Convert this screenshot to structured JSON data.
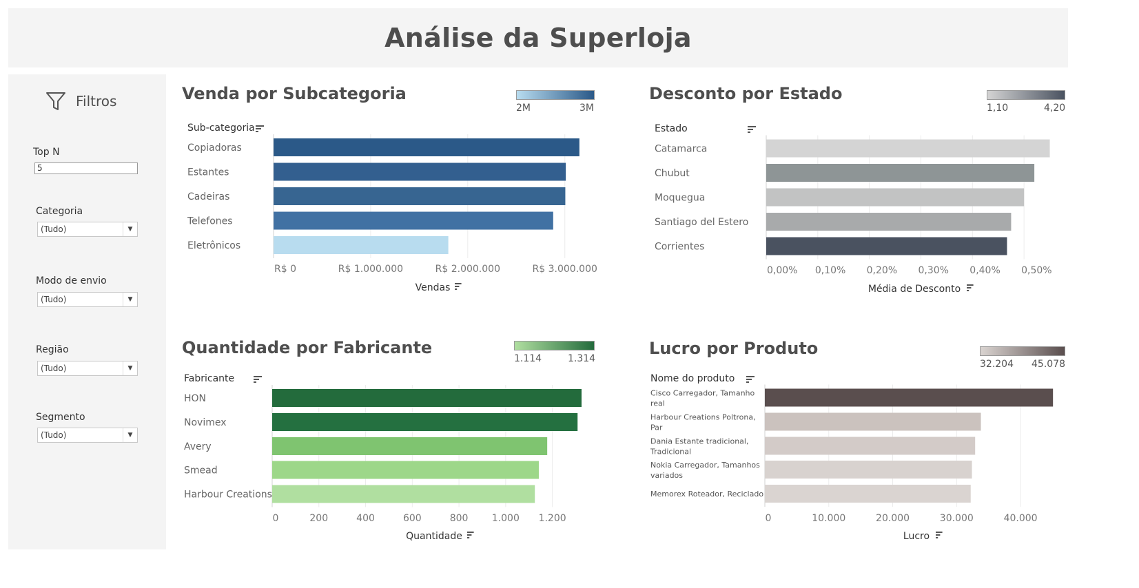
{
  "header": {
    "title": "Análise da Superloja"
  },
  "sidebar": {
    "filters_label": "Filtros",
    "topn": {
      "label": "Top N",
      "value": "5"
    },
    "filters": [
      {
        "label": "Categoria",
        "value": "(Tudo)"
      },
      {
        "label": "Modo de envio",
        "value": "(Tudo)"
      },
      {
        "label": "Região",
        "value": "(Tudo)"
      },
      {
        "label": "Segmento",
        "value": "(Tudo)"
      }
    ]
  },
  "chart_data": [
    {
      "type": "bar",
      "title": "Venda por Subcategoria",
      "category_header": "Sub-categoria",
      "xlabel": "Vendas",
      "categories": [
        "Copiadoras",
        "Estantes",
        "Cadeiras",
        "Telefones",
        "Eletrônicos"
      ],
      "values": [
        3150000,
        3010000,
        3005000,
        2880000,
        1800000
      ],
      "colors": [
        "#2b5988",
        "#335f8f",
        "#376591",
        "#4171a3",
        "#b8dcef"
      ],
      "xlim": [
        0,
        3300000
      ],
      "xticks": [
        {
          "value": 0,
          "label": "R$ 0"
        },
        {
          "value": 1000000,
          "label": "R$ 1.000.000"
        },
        {
          "value": 2000000,
          "label": "R$ 2.000.000"
        },
        {
          "value": 3000000,
          "label": "R$ 3.000.000"
        }
      ],
      "legend": {
        "min_label": "2M",
        "max_label": "3M",
        "color_min": "#b8dcef",
        "color_max": "#2b5988"
      }
    },
    {
      "type": "bar",
      "title": "Desconto por Estado",
      "category_header": "Estado",
      "xlabel": "Média de Desconto",
      "categories": [
        "Catamarca",
        "Chubut",
        "Moquegua",
        "Santiago del Estero",
        "Corrientes"
      ],
      "values": [
        0.55,
        0.52,
        0.5,
        0.475,
        0.467
      ],
      "colors": [
        "#d4d4d4",
        "#8e9596",
        "#c2c3c3",
        "#a8aaab",
        "#4a5260"
      ],
      "xlim": [
        0,
        0.58
      ],
      "xticks": [
        {
          "value": 0.0,
          "label": "0,00%"
        },
        {
          "value": 0.1,
          "label": "0,10%"
        },
        {
          "value": 0.2,
          "label": "0,20%"
        },
        {
          "value": 0.3,
          "label": "0,30%"
        },
        {
          "value": 0.4,
          "label": "0,40%"
        },
        {
          "value": 0.5,
          "label": "0,50%"
        }
      ],
      "legend": {
        "min_label": "1,10",
        "max_label": "4,20",
        "color_min": "#d4d4d4",
        "color_max": "#4a5260"
      }
    },
    {
      "type": "bar",
      "title": "Quantidade por Fabricante",
      "category_header": "Fabricante",
      "xlabel": "Quantidade",
      "categories": [
        "HON",
        "Novimex",
        "Avery",
        "Smead",
        "Harbour Creations"
      ],
      "values": [
        1325,
        1308,
        1178,
        1142,
        1125
      ],
      "colors": [
        "#236b3c",
        "#247040",
        "#7fc470",
        "#9dd789",
        "#b0dfa0"
      ],
      "xlim": [
        0,
        1390
      ],
      "xticks": [
        {
          "value": 0,
          "label": "0"
        },
        {
          "value": 200,
          "label": "200"
        },
        {
          "value": 400,
          "label": "400"
        },
        {
          "value": 600,
          "label": "600"
        },
        {
          "value": 800,
          "label": "800"
        },
        {
          "value": 1000,
          "label": "1.000"
        },
        {
          "value": 1200,
          "label": "1.200"
        }
      ],
      "legend": {
        "min_label": "1.114",
        "max_label": "1.314",
        "color_min": "#b0dfa0",
        "color_max": "#236b3c"
      }
    },
    {
      "type": "bar",
      "title": "Lucro por Produto",
      "category_header": "Nome do produto",
      "xlabel": "Lucro",
      "categories": [
        [
          "Cisco Carregador, Tamanho",
          "real"
        ],
        [
          "Harbour Creations Poltrona,",
          "Par"
        ],
        [
          "Dania Estante tradicional,",
          "Tradicional"
        ],
        [
          "Nokia Carregador, Tamanhos",
          "variados"
        ],
        [
          "Memorex Roteador, Reciclado"
        ]
      ],
      "values": [
        45078,
        33800,
        32900,
        32400,
        32204
      ],
      "colors": [
        "#5a4e4e",
        "#cbc2be",
        "#d3cbc8",
        "#d8d2cf",
        "#dad4d1"
      ],
      "xlim": [
        0,
        47000
      ],
      "xticks": [
        {
          "value": 0,
          "label": "0"
        },
        {
          "value": 10000,
          "label": "10.000"
        },
        {
          "value": 20000,
          "label": "20.000"
        },
        {
          "value": 30000,
          "label": "30.000"
        },
        {
          "value": 40000,
          "label": "40.000"
        }
      ],
      "legend": {
        "min_label": "32.204",
        "max_label": "45.078",
        "color_min": "#dad4d1",
        "color_max": "#5a4e4e"
      }
    }
  ]
}
